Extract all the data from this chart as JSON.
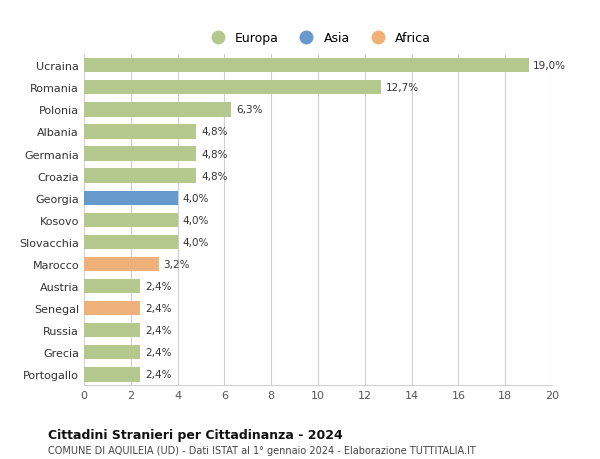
{
  "countries": [
    "Ucraina",
    "Romania",
    "Polonia",
    "Albania",
    "Germania",
    "Croazia",
    "Georgia",
    "Kosovo",
    "Slovacchia",
    "Marocco",
    "Austria",
    "Senegal",
    "Russia",
    "Grecia",
    "Portogallo"
  ],
  "values": [
    19.0,
    12.7,
    6.3,
    4.8,
    4.8,
    4.8,
    4.0,
    4.0,
    4.0,
    3.2,
    2.4,
    2.4,
    2.4,
    2.4,
    2.4
  ],
  "labels": [
    "19,0%",
    "12,7%",
    "6,3%",
    "4,8%",
    "4,8%",
    "4,8%",
    "4,0%",
    "4,0%",
    "4,0%",
    "3,2%",
    "2,4%",
    "2,4%",
    "2,4%",
    "2,4%",
    "2,4%"
  ],
  "continents": [
    "Europa",
    "Europa",
    "Europa",
    "Europa",
    "Europa",
    "Europa",
    "Asia",
    "Europa",
    "Europa",
    "Africa",
    "Europa",
    "Africa",
    "Europa",
    "Europa",
    "Europa"
  ],
  "color_europa": "#b5c98e",
  "color_asia": "#6699cc",
  "color_africa": "#f0b07a",
  "bg_color": "#ffffff",
  "grid_color": "#d0d0d0",
  "title": "Cittadini Stranieri per Cittadinanza - 2024",
  "subtitle": "COMUNE DI AQUILEIA (UD) - Dati ISTAT al 1° gennaio 2024 - Elaborazione TUTTITALIA.IT",
  "xlim": [
    0,
    20
  ],
  "xticks": [
    0,
    2,
    4,
    6,
    8,
    10,
    12,
    14,
    16,
    18,
    20
  ],
  "legend_labels": [
    "Europa",
    "Asia",
    "Africa"
  ],
  "legend_colors": [
    "#b5c98e",
    "#6699cc",
    "#f0b07a"
  ]
}
